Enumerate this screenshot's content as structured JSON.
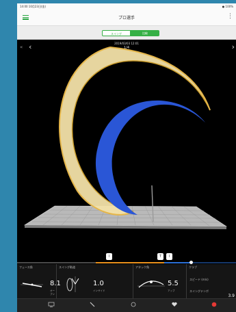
{
  "status_bar": {
    "left_text": "14:00  10月23日(金)",
    "right_text": "● 100%"
  },
  "header": {
    "title": "プロ選手"
  },
  "segments": {
    "swing": "スイング",
    "pro": "比較"
  },
  "viewer": {
    "date": "2019/03/03 12:01",
    "count": "1/4"
  },
  "timeline": {
    "markers": [
      "I",
      "T",
      "I"
    ]
  },
  "metrics": {
    "face_angle": {
      "label": "フェース角",
      "value": "8.1",
      "unit": "オープン"
    },
    "swing_path": {
      "label": "スイング軌道",
      "value": "1.0",
      "unit": "インサイド"
    },
    "attack_angle": {
      "label": "アタック角",
      "value": "5.5",
      "unit": "アップ"
    },
    "club": {
      "label": "クラブ",
      "speed_label": "スピード (m/s)",
      "tempo_label": "スイングテンポ",
      "tempo_value": "3.9"
    }
  },
  "tabs": [
    "home-tab",
    "club-tab",
    "golf-tab",
    "heart-tab",
    "record-tab"
  ],
  "colors": {
    "accent": "#35b045",
    "timeline_orange": "#e9901c",
    "timeline_blue": "#2b6fd6",
    "trail_gold": "#e5b64a",
    "trail_blue": "#2a56d6"
  }
}
